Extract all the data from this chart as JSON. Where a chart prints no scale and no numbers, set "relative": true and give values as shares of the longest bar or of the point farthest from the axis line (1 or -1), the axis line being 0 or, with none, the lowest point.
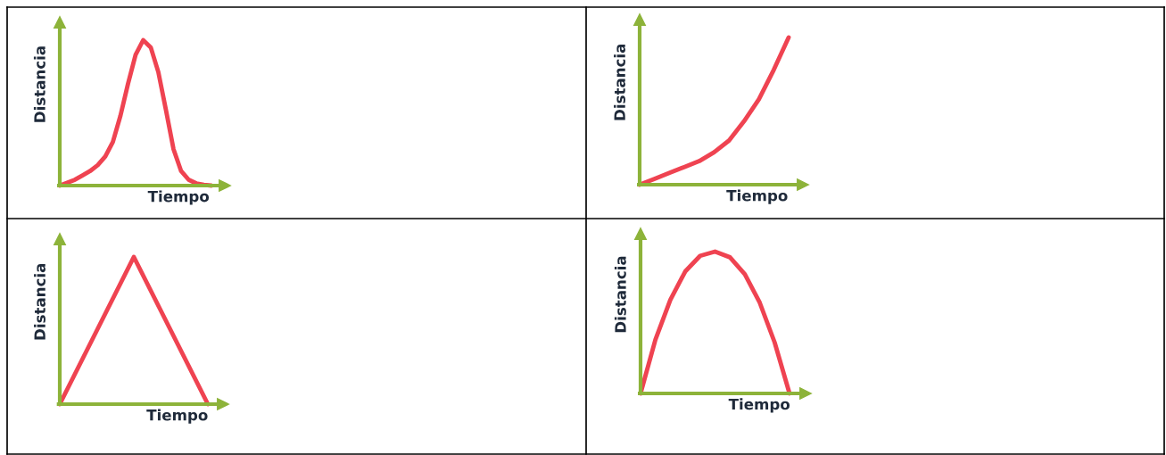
{
  "chart_data": [
    {
      "type": "line",
      "xlabel": "Tiempo",
      "ylabel": "Distancia",
      "relative": true,
      "categories": [
        null,
        null,
        null,
        null,
        null,
        null,
        null,
        null,
        null,
        null,
        null,
        null,
        null,
        null,
        null,
        null,
        null,
        null,
        null,
        null,
        null
      ],
      "series": [
        {
          "color": "#ef4351",
          "values": [
            0,
            0.02,
            0.04,
            0.07,
            0.1,
            0.14,
            0.2,
            0.3,
            0.48,
            0.7,
            0.9,
            1.0,
            0.95,
            0.78,
            0.52,
            0.25,
            0.1,
            0.04,
            0.015,
            0.005,
            0
          ]
        }
      ]
    },
    {
      "type": "line",
      "xlabel": "Tiempo",
      "ylabel": "Distancia",
      "relative": true,
      "categories": [
        null,
        null,
        null,
        null,
        null,
        null,
        null,
        null,
        null,
        null,
        null
      ],
      "series": [
        {
          "color": "#ef4351",
          "values": [
            0,
            0.04,
            0.08,
            0.12,
            0.16,
            0.22,
            0.3,
            0.43,
            0.58,
            0.78,
            1.0
          ]
        }
      ]
    },
    {
      "type": "line",
      "xlabel": "Tiempo",
      "ylabel": "Distancia",
      "relative": true,
      "categories": [
        null,
        null,
        null
      ],
      "series": [
        {
          "color": "#ef4351",
          "values": [
            0,
            1.0,
            0
          ]
        }
      ]
    },
    {
      "type": "line",
      "xlabel": "Tiempo",
      "ylabel": "Distancia",
      "relative": true,
      "categories": [
        null,
        null,
        null,
        null,
        null,
        null,
        null,
        null,
        null,
        null,
        null
      ],
      "series": [
        {
          "color": "#ef4351",
          "values": [
            0,
            0.38,
            0.66,
            0.86,
            0.97,
            1.0,
            0.96,
            0.84,
            0.64,
            0.36,
            0
          ]
        }
      ]
    }
  ]
}
